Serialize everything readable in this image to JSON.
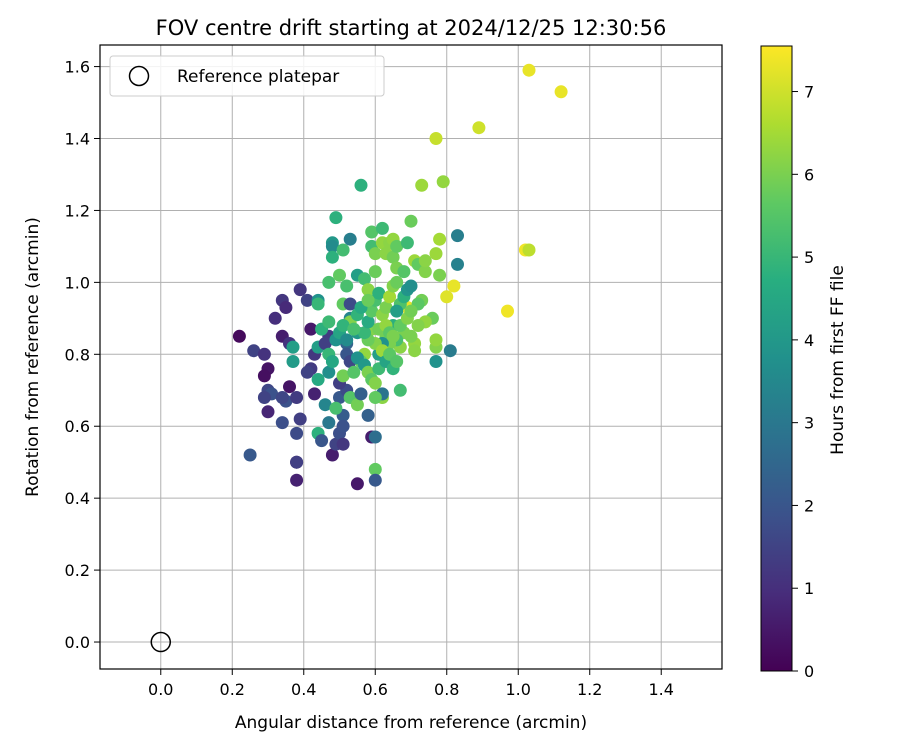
{
  "chart_data": {
    "type": "scatter",
    "title": "FOV centre drift starting at 2024/12/25 12:30:56",
    "xlabel": "Angular distance from reference (arcmin)",
    "ylabel": "Rotation from reference (arcmin)",
    "xlim": [
      -0.17,
      1.57
    ],
    "ylim": [
      -0.075,
      1.66
    ],
    "xticks": [
      0.0,
      0.2,
      0.4,
      0.6,
      0.8,
      1.0,
      1.2,
      1.4
    ],
    "xtick_labels": [
      "0.0",
      "0.2",
      "0.4",
      "0.6",
      "0.8",
      "1.0",
      "1.2",
      "1.4"
    ],
    "yticks": [
      0.0,
      0.2,
      0.4,
      0.6,
      0.8,
      1.0,
      1.2,
      1.4,
      1.6
    ],
    "ytick_labels": [
      "0.0",
      "0.2",
      "0.4",
      "0.6",
      "0.8",
      "1.0",
      "1.2",
      "1.4",
      "1.6"
    ],
    "grid": true,
    "legend": {
      "placement": "top-left",
      "entries": [
        {
          "label": "Reference platepar",
          "marker": "open-circle"
        }
      ]
    },
    "reference_point": {
      "x": 0.0,
      "y": 0.0
    },
    "colorbar": {
      "label": "Hours from first FF file",
      "colormap": "viridis",
      "range": [
        0,
        7.55
      ],
      "ticks": [
        0,
        1,
        2,
        3,
        4,
        5,
        6,
        7
      ],
      "tick_labels": [
        "0",
        "1",
        "2",
        "3",
        "4",
        "5",
        "6",
        "7"
      ]
    },
    "points": [
      {
        "x": 0.22,
        "y": 0.85,
        "h": 0.2
      },
      {
        "x": 0.26,
        "y": 0.81,
        "h": 1.5
      },
      {
        "x": 0.29,
        "y": 0.8,
        "h": 1.1
      },
      {
        "x": 0.3,
        "y": 0.76,
        "h": 0.4
      },
      {
        "x": 0.29,
        "y": 0.74,
        "h": 0.3
      },
      {
        "x": 0.3,
        "y": 0.7,
        "h": 1.6
      },
      {
        "x": 0.31,
        "y": 0.69,
        "h": 1.9
      },
      {
        "x": 0.29,
        "y": 0.68,
        "h": 1.5
      },
      {
        "x": 0.3,
        "y": 0.64,
        "h": 0.8
      },
      {
        "x": 0.34,
        "y": 0.61,
        "h": 1.8
      },
      {
        "x": 0.25,
        "y": 0.52,
        "h": 2.1
      },
      {
        "x": 0.32,
        "y": 0.9,
        "h": 1.0
      },
      {
        "x": 0.34,
        "y": 0.95,
        "h": 1.2
      },
      {
        "x": 0.35,
        "y": 0.93,
        "h": 0.9
      },
      {
        "x": 0.34,
        "y": 0.85,
        "h": 0.6
      },
      {
        "x": 0.36,
        "y": 0.83,
        "h": 1.1
      },
      {
        "x": 0.37,
        "y": 0.82,
        "h": 4.2
      },
      {
        "x": 0.37,
        "y": 0.78,
        "h": 4.1
      },
      {
        "x": 0.36,
        "y": 0.71,
        "h": 0.4
      },
      {
        "x": 0.35,
        "y": 0.67,
        "h": 1.9
      },
      {
        "x": 0.34,
        "y": 0.68,
        "h": 1.6
      },
      {
        "x": 0.38,
        "y": 0.68,
        "h": 1.3
      },
      {
        "x": 0.38,
        "y": 0.58,
        "h": 1.7
      },
      {
        "x": 0.39,
        "y": 0.62,
        "h": 1.4
      },
      {
        "x": 0.38,
        "y": 0.5,
        "h": 0.6
      },
      {
        "x": 0.38,
        "y": 0.5,
        "h": 1.4
      },
      {
        "x": 0.38,
        "y": 0.45,
        "h": 0.7
      },
      {
        "x": 0.39,
        "y": 0.98,
        "h": 1.2
      },
      {
        "x": 0.41,
        "y": 0.95,
        "h": 1.5
      },
      {
        "x": 0.42,
        "y": 0.87,
        "h": 0.5
      },
      {
        "x": 0.43,
        "y": 0.8,
        "h": 1.2
      },
      {
        "x": 0.42,
        "y": 0.76,
        "h": 1.3
      },
      {
        "x": 0.41,
        "y": 0.75,
        "h": 1.5
      },
      {
        "x": 0.43,
        "y": 0.69,
        "h": 0.7
      },
      {
        "x": 0.44,
        "y": 0.73,
        "h": 4.6
      },
      {
        "x": 0.44,
        "y": 0.58,
        "h": 4.8
      },
      {
        "x": 0.45,
        "y": 0.56,
        "h": 2.0
      },
      {
        "x": 0.46,
        "y": 0.66,
        "h": 3.4
      },
      {
        "x": 0.47,
        "y": 0.61,
        "h": 3.0
      },
      {
        "x": 0.48,
        "y": 0.52,
        "h": 0.6
      },
      {
        "x": 0.49,
        "y": 0.55,
        "h": 1.5
      },
      {
        "x": 0.5,
        "y": 0.58,
        "h": 1.8
      },
      {
        "x": 0.51,
        "y": 0.55,
        "h": 1.2
      },
      {
        "x": 0.51,
        "y": 0.63,
        "h": 2.2
      },
      {
        "x": 0.51,
        "y": 0.6,
        "h": 1.9
      },
      {
        "x": 0.5,
        "y": 0.68,
        "h": 2.1
      },
      {
        "x": 0.52,
        "y": 0.7,
        "h": 1.7
      },
      {
        "x": 0.5,
        "y": 0.72,
        "h": 1.4
      },
      {
        "x": 0.49,
        "y": 0.65,
        "h": 5.3
      },
      {
        "x": 0.53,
        "y": 0.68,
        "h": 5.5
      },
      {
        "x": 0.47,
        "y": 0.75,
        "h": 3.7
      },
      {
        "x": 0.47,
        "y": 0.85,
        "h": 1.3
      },
      {
        "x": 0.44,
        "y": 0.82,
        "h": 4.2
      },
      {
        "x": 0.45,
        "y": 0.87,
        "h": 4.8
      },
      {
        "x": 0.47,
        "y": 0.89,
        "h": 5.1
      },
      {
        "x": 0.44,
        "y": 0.95,
        "h": 3.8
      },
      {
        "x": 0.44,
        "y": 0.94,
        "h": 5.0
      },
      {
        "x": 0.47,
        "y": 1.0,
        "h": 5.3
      },
      {
        "x": 0.48,
        "y": 1.11,
        "h": 4.0
      },
      {
        "x": 0.48,
        "y": 1.1,
        "h": 3.6
      },
      {
        "x": 0.48,
        "y": 1.07,
        "h": 4.8
      },
      {
        "x": 0.49,
        "y": 1.18,
        "h": 4.8
      },
      {
        "x": 0.5,
        "y": 1.02,
        "h": 5.7
      },
      {
        "x": 0.51,
        "y": 1.09,
        "h": 5.2
      },
      {
        "x": 0.53,
        "y": 1.12,
        "h": 3.2
      },
      {
        "x": 0.52,
        "y": 0.99,
        "h": 5.3
      },
      {
        "x": 0.51,
        "y": 0.94,
        "h": 5.7
      },
      {
        "x": 0.53,
        "y": 0.94,
        "h": 1.7
      },
      {
        "x": 0.53,
        "y": 0.9,
        "h": 3.4
      },
      {
        "x": 0.53,
        "y": 0.89,
        "h": 6.1
      },
      {
        "x": 0.52,
        "y": 0.83,
        "h": 2.4
      },
      {
        "x": 0.52,
        "y": 0.8,
        "h": 2.0
      },
      {
        "x": 0.53,
        "y": 0.78,
        "h": 1.6
      },
      {
        "x": 0.51,
        "y": 0.74,
        "h": 5.9
      },
      {
        "x": 0.54,
        "y": 0.75,
        "h": 5.5
      },
      {
        "x": 0.55,
        "y": 0.86,
        "h": 4.0
      },
      {
        "x": 0.55,
        "y": 1.02,
        "h": 4.2
      },
      {
        "x": 0.56,
        "y": 1.27,
        "h": 4.8
      },
      {
        "x": 0.57,
        "y": 1.01,
        "h": 5.2
      },
      {
        "x": 0.58,
        "y": 0.98,
        "h": 6.2
      },
      {
        "x": 0.59,
        "y": 1.1,
        "h": 5.2
      },
      {
        "x": 0.59,
        "y": 1.14,
        "h": 5.5
      },
      {
        "x": 0.6,
        "y": 1.03,
        "h": 5.8
      },
      {
        "x": 0.6,
        "y": 1.08,
        "h": 6.0
      },
      {
        "x": 0.62,
        "y": 1.15,
        "h": 5.1
      },
      {
        "x": 0.62,
        "y": 1.11,
        "h": 6.3
      },
      {
        "x": 0.63,
        "y": 1.08,
        "h": 6.2
      },
      {
        "x": 0.64,
        "y": 1.11,
        "h": 6.2
      },
      {
        "x": 0.65,
        "y": 1.12,
        "h": 6.3
      },
      {
        "x": 0.65,
        "y": 1.07,
        "h": 5.9
      },
      {
        "x": 0.66,
        "y": 1.1,
        "h": 5.7
      },
      {
        "x": 0.66,
        "y": 1.04,
        "h": 6.0
      },
      {
        "x": 0.68,
        "y": 1.03,
        "h": 5.5
      },
      {
        "x": 0.69,
        "y": 1.11,
        "h": 5.1
      },
      {
        "x": 0.7,
        "y": 1.17,
        "h": 5.8
      },
      {
        "x": 0.71,
        "y": 1.06,
        "h": 6.4
      },
      {
        "x": 0.72,
        "y": 1.05,
        "h": 5.7
      },
      {
        "x": 0.74,
        "y": 1.03,
        "h": 6.1
      },
      {
        "x": 0.74,
        "y": 1.06,
        "h": 6.2
      },
      {
        "x": 0.77,
        "y": 1.08,
        "h": 6.4
      },
      {
        "x": 0.78,
        "y": 1.12,
        "h": 6.5
      },
      {
        "x": 0.78,
        "y": 1.02,
        "h": 6.0
      },
      {
        "x": 0.8,
        "y": 0.96,
        "h": 7.2
      },
      {
        "x": 0.82,
        "y": 0.99,
        "h": 7.3
      },
      {
        "x": 0.83,
        "y": 1.13,
        "h": 3.2
      },
      {
        "x": 0.83,
        "y": 1.05,
        "h": 3.3
      },
      {
        "x": 0.81,
        "y": 0.81,
        "h": 3.1
      },
      {
        "x": 0.77,
        "y": 0.82,
        "h": 6.1
      },
      {
        "x": 0.77,
        "y": 0.78,
        "h": 3.8
      },
      {
        "x": 0.77,
        "y": 0.84,
        "h": 6.3
      },
      {
        "x": 0.76,
        "y": 0.9,
        "h": 5.8
      },
      {
        "x": 0.74,
        "y": 0.89,
        "h": 6.3
      },
      {
        "x": 0.73,
        "y": 0.95,
        "h": 5.9
      },
      {
        "x": 0.72,
        "y": 0.88,
        "h": 6.1
      },
      {
        "x": 0.71,
        "y": 0.83,
        "h": 6.3
      },
      {
        "x": 0.7,
        "y": 0.85,
        "h": 6.0
      },
      {
        "x": 0.71,
        "y": 0.81,
        "h": 6.2
      },
      {
        "x": 0.69,
        "y": 0.93,
        "h": 7.3
      },
      {
        "x": 0.68,
        "y": 0.86,
        "h": 6.0
      },
      {
        "x": 0.67,
        "y": 0.82,
        "h": 6.2
      },
      {
        "x": 0.66,
        "y": 0.84,
        "h": 5.3
      },
      {
        "x": 0.65,
        "y": 0.88,
        "h": 4.8
      },
      {
        "x": 0.64,
        "y": 0.83,
        "h": 6.0
      },
      {
        "x": 0.63,
        "y": 0.85,
        "h": 5.9
      },
      {
        "x": 0.62,
        "y": 0.83,
        "h": 3.8
      },
      {
        "x": 0.61,
        "y": 0.8,
        "h": 4.2
      },
      {
        "x": 0.6,
        "y": 0.83,
        "h": 6.1
      },
      {
        "x": 0.59,
        "y": 0.87,
        "h": 6.1
      },
      {
        "x": 0.58,
        "y": 0.84,
        "h": 5.8
      },
      {
        "x": 0.57,
        "y": 0.8,
        "h": 6.3
      },
      {
        "x": 0.56,
        "y": 0.78,
        "h": 5.7
      },
      {
        "x": 0.55,
        "y": 0.79,
        "h": 3.8
      },
      {
        "x": 0.57,
        "y": 0.77,
        "h": 4.0
      },
      {
        "x": 0.58,
        "y": 0.75,
        "h": 6.0
      },
      {
        "x": 0.59,
        "y": 0.73,
        "h": 5.6
      },
      {
        "x": 0.6,
        "y": 0.72,
        "h": 6.1
      },
      {
        "x": 0.61,
        "y": 0.76,
        "h": 5.1
      },
      {
        "x": 0.62,
        "y": 0.81,
        "h": 6.4
      },
      {
        "x": 0.63,
        "y": 0.78,
        "h": 4.4
      },
      {
        "x": 0.64,
        "y": 0.8,
        "h": 5.6
      },
      {
        "x": 0.65,
        "y": 0.76,
        "h": 4.9
      },
      {
        "x": 0.66,
        "y": 0.78,
        "h": 5.5
      },
      {
        "x": 0.67,
        "y": 0.7,
        "h": 5.2
      },
      {
        "x": 0.62,
        "y": 0.68,
        "h": 6.2
      },
      {
        "x": 0.62,
        "y": 0.69,
        "h": 2.9
      },
      {
        "x": 0.6,
        "y": 0.68,
        "h": 5.7
      },
      {
        "x": 0.59,
        "y": 0.57,
        "h": 0.6
      },
      {
        "x": 0.6,
        "y": 0.57,
        "h": 2.7
      },
      {
        "x": 0.6,
        "y": 0.48,
        "h": 5.7
      },
      {
        "x": 0.6,
        "y": 0.45,
        "h": 2.1
      },
      {
        "x": 0.55,
        "y": 0.44,
        "h": 0.5
      },
      {
        "x": 0.55,
        "y": 0.66,
        "h": 5.9
      },
      {
        "x": 0.56,
        "y": 0.69,
        "h": 2.3
      },
      {
        "x": 0.58,
        "y": 0.63,
        "h": 2.3
      },
      {
        "x": 0.57,
        "y": 0.86,
        "h": 5.0
      },
      {
        "x": 0.58,
        "y": 0.89,
        "h": 4.6
      },
      {
        "x": 0.59,
        "y": 0.92,
        "h": 5.6
      },
      {
        "x": 0.6,
        "y": 0.95,
        "h": 5.3
      },
      {
        "x": 0.61,
        "y": 0.97,
        "h": 4.8
      },
      {
        "x": 0.62,
        "y": 0.91,
        "h": 6.2
      },
      {
        "x": 0.63,
        "y": 0.93,
        "h": 6.0
      },
      {
        "x": 0.64,
        "y": 0.96,
        "h": 6.5
      },
      {
        "x": 0.65,
        "y": 0.99,
        "h": 6.1
      },
      {
        "x": 0.66,
        "y": 1.0,
        "h": 5.8
      },
      {
        "x": 0.67,
        "y": 0.94,
        "h": 5.4
      },
      {
        "x": 0.68,
        "y": 0.96,
        "h": 4.8
      },
      {
        "x": 0.69,
        "y": 0.98,
        "h": 3.9
      },
      {
        "x": 0.7,
        "y": 0.99,
        "h": 3.7
      },
      {
        "x": 0.72,
        "y": 0.94,
        "h": 5.6
      },
      {
        "x": 0.46,
        "y": 0.83,
        "h": 1.4
      },
      {
        "x": 0.47,
        "y": 0.8,
        "h": 5.0
      },
      {
        "x": 0.48,
        "y": 0.78,
        "h": 4.5
      },
      {
        "x": 0.49,
        "y": 0.84,
        "h": 3.8
      },
      {
        "x": 0.5,
        "y": 0.86,
        "h": 4.4
      },
      {
        "x": 0.51,
        "y": 0.88,
        "h": 4.9
      },
      {
        "x": 0.52,
        "y": 0.84,
        "h": 3.6
      },
      {
        "x": 0.54,
        "y": 0.87,
        "h": 5.3
      },
      {
        "x": 0.55,
        "y": 0.91,
        "h": 4.9
      },
      {
        "x": 0.56,
        "y": 0.93,
        "h": 4.6
      },
      {
        "x": 0.58,
        "y": 0.95,
        "h": 5.8
      },
      {
        "x": 0.61,
        "y": 0.87,
        "h": 5.9
      },
      {
        "x": 0.63,
        "y": 0.88,
        "h": 6.3
      },
      {
        "x": 0.64,
        "y": 0.86,
        "h": 5.6
      },
      {
        "x": 0.65,
        "y": 0.85,
        "h": 6.0
      },
      {
        "x": 0.66,
        "y": 0.92,
        "h": 4.2
      },
      {
        "x": 0.67,
        "y": 0.88,
        "h": 5.7
      },
      {
        "x": 0.69,
        "y": 0.9,
        "h": 6.1
      },
      {
        "x": 0.7,
        "y": 0.92,
        "h": 5.9
      },
      {
        "x": 0.73,
        "y": 1.27,
        "h": 6.4
      },
      {
        "x": 0.77,
        "y": 1.4,
        "h": 6.9
      },
      {
        "x": 0.79,
        "y": 1.28,
        "h": 6.3
      },
      {
        "x": 0.89,
        "y": 1.43,
        "h": 7.0
      },
      {
        "x": 1.03,
        "y": 1.59,
        "h": 7.3
      },
      {
        "x": 1.12,
        "y": 1.53,
        "h": 7.3
      },
      {
        "x": 1.02,
        "y": 1.09,
        "h": 7.4
      },
      {
        "x": 1.03,
        "y": 1.09,
        "h": 6.8
      },
      {
        "x": 0.97,
        "y": 0.92,
        "h": 7.4
      }
    ]
  }
}
